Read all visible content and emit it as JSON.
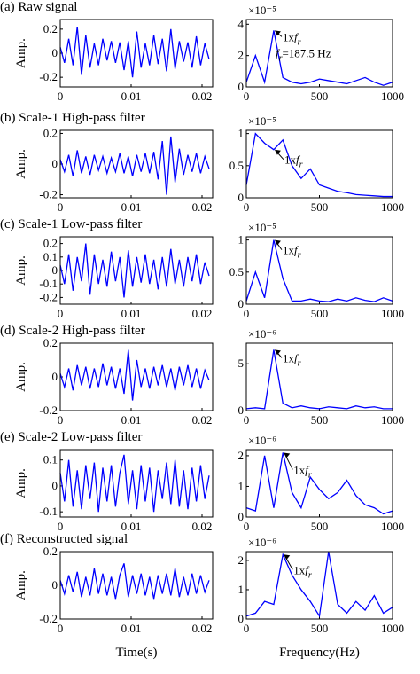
{
  "chart_data": [
    {
      "type": "line",
      "title": "(a) Raw signal",
      "ylabel": "Amp.",
      "color": "#0000ff",
      "x": [
        0,
        0.0006,
        0.0012,
        0.0018,
        0.0024,
        0.003,
        0.0036,
        0.0042,
        0.0048,
        0.0054,
        0.006,
        0.0066,
        0.0072,
        0.0078,
        0.0084,
        0.009,
        0.0096,
        0.0102,
        0.0108,
        0.0114,
        0.012,
        0.0126,
        0.0132,
        0.0138,
        0.0144,
        0.015,
        0.0156,
        0.0162,
        0.0168,
        0.0174,
        0.018,
        0.0186,
        0.0192,
        0.0198,
        0.0204,
        0.021
      ],
      "values": [
        0.05,
        -0.08,
        0.12,
        -0.1,
        0.22,
        -0.18,
        0.15,
        -0.12,
        0.08,
        -0.1,
        0.12,
        -0.06,
        0.1,
        -0.08,
        0.09,
        -0.14,
        0.1,
        -0.2,
        0.18,
        -0.12,
        0.08,
        -0.1,
        0.15,
        -0.09,
        0.12,
        -0.15,
        0.2,
        -0.13,
        0.1,
        -0.07,
        0.09,
        -0.12,
        0.14,
        -0.1,
        0.08,
        -0.05
      ],
      "xlim": [
        0,
        0.0215
      ],
      "xticks": [
        0,
        0.01,
        0.02
      ],
      "ylim": [
        -0.28,
        0.28
      ],
      "yticks": [
        -0.2,
        0,
        0.2
      ]
    },
    {
      "type": "line",
      "y_scale_label": "×10⁻⁵",
      "color": "#0000ff",
      "x": [
        0,
        62.5,
        125,
        187.5,
        250,
        312.5,
        375,
        437.5,
        500,
        562.5,
        625,
        687.5,
        750,
        812.5,
        875,
        937.5,
        1000
      ],
      "values": [
        0.3,
        2,
        0.3,
        3.6,
        0.6,
        0.3,
        0.2,
        0.3,
        0.5,
        0.4,
        0.3,
        0.2,
        0.4,
        0.6,
        0.3,
        0.1,
        0.3
      ],
      "xlim": [
        0,
        1000
      ],
      "xticks": [
        0,
        500,
        1000
      ],
      "ylim": [
        0,
        4.3
      ],
      "yticks": [
        0,
        2,
        4
      ],
      "annotations": [
        [
          {
            "text": "1x"
          },
          {
            "text": "f",
            "style": "italic"
          },
          {
            "text": "r",
            "style": "sub"
          }
        ],
        [
          {
            "text": "f",
            "style": "italic"
          },
          {
            "text": "r",
            "style": "sub"
          },
          {
            "text": "=187.5 Hz"
          }
        ]
      ]
    },
    {
      "type": "line",
      "title": "(b) Scale-1 High-pass filter",
      "ylabel": "Amp.",
      "color": "#0000ff",
      "x": [
        0,
        0.0006,
        0.0012,
        0.0018,
        0.0024,
        0.003,
        0.0036,
        0.0042,
        0.0048,
        0.0054,
        0.006,
        0.0066,
        0.0072,
        0.0078,
        0.0084,
        0.009,
        0.0096,
        0.0102,
        0.0108,
        0.0114,
        0.012,
        0.0126,
        0.0132,
        0.0138,
        0.0144,
        0.015,
        0.0156,
        0.0162,
        0.0168,
        0.0174,
        0.018,
        0.0186,
        0.0192,
        0.0198,
        0.0204,
        0.021
      ],
      "values": [
        0.03,
        -0.05,
        0.06,
        -0.08,
        0.09,
        -0.06,
        0.05,
        -0.07,
        0.06,
        -0.04,
        0.05,
        -0.06,
        0.04,
        -0.05,
        0.07,
        -0.06,
        0.05,
        -0.08,
        0.06,
        -0.05,
        0.07,
        -0.06,
        0.08,
        -0.1,
        0.15,
        -0.2,
        0.18,
        -0.12,
        0.1,
        -0.07,
        0.06,
        -0.05,
        0.07,
        -0.06,
        0.05,
        -0.03
      ],
      "xlim": [
        0,
        0.0215
      ],
      "xticks": [
        0,
        0.01,
        0.02
      ],
      "ylim": [
        -0.22,
        0.22
      ],
      "yticks": [
        -0.2,
        0,
        0.2
      ]
    },
    {
      "type": "line",
      "y_scale_label": "×10⁻⁵",
      "color": "#0000ff",
      "x": [
        0,
        62.5,
        125,
        187.5,
        250,
        312.5,
        375,
        437.5,
        500,
        562.5,
        625,
        687.5,
        750,
        812.5,
        875,
        937.5,
        1000
      ],
      "values": [
        0.2,
        1.0,
        0.85,
        0.75,
        0.9,
        0.5,
        0.3,
        0.45,
        0.2,
        0.15,
        0.1,
        0.08,
        0.05,
        0.04,
        0.03,
        0.02,
        0.02
      ],
      "xlim": [
        0,
        1000
      ],
      "xticks": [
        0,
        500,
        1000
      ],
      "ylim": [
        0,
        1.05
      ],
      "yticks": [
        0,
        0.5,
        1
      ],
      "annotations": [
        [
          {
            "text": "1x"
          },
          {
            "text": "f",
            "style": "italic"
          },
          {
            "text": "r",
            "style": "sub"
          }
        ]
      ]
    },
    {
      "type": "line",
      "title": "(c) Scale-1 Low-pass filter",
      "ylabel": "Amp.",
      "color": "#0000ff",
      "x": [
        0,
        0.0006,
        0.0012,
        0.0018,
        0.0024,
        0.003,
        0.0036,
        0.0042,
        0.0048,
        0.0054,
        0.006,
        0.0066,
        0.0072,
        0.0078,
        0.0084,
        0.009,
        0.0096,
        0.0102,
        0.0108,
        0.0114,
        0.012,
        0.0126,
        0.0132,
        0.0138,
        0.0144,
        0.015,
        0.0156,
        0.0162,
        0.0168,
        0.0174,
        0.018,
        0.0186,
        0.0192,
        0.0198,
        0.0204,
        0.021
      ],
      "values": [
        0.04,
        -0.1,
        0.12,
        -0.15,
        0.1,
        -0.08,
        0.2,
        -0.18,
        0.12,
        -0.1,
        0.08,
        -0.12,
        0.14,
        -0.08,
        0.1,
        -0.2,
        0.15,
        -0.12,
        0.1,
        -0.09,
        0.12,
        -0.1,
        0.08,
        -0.14,
        0.1,
        -0.12,
        0.16,
        -0.1,
        0.08,
        -0.12,
        0.1,
        -0.08,
        0.12,
        -0.1,
        0.06,
        -0.04
      ],
      "xlim": [
        0,
        0.0215
      ],
      "xticks": [
        0,
        0.01,
        0.02
      ],
      "ylim": [
        -0.25,
        0.25
      ],
      "yticks": [
        -0.2,
        -0.1,
        0,
        0.1,
        0.2
      ]
    },
    {
      "type": "line",
      "y_scale_label": "×10⁻⁵",
      "color": "#0000ff",
      "x": [
        0,
        62.5,
        125,
        187.5,
        250,
        312.5,
        375,
        437.5,
        500,
        562.5,
        625,
        687.5,
        750,
        812.5,
        875,
        937.5,
        1000
      ],
      "values": [
        0.05,
        0.5,
        0.1,
        1.0,
        0.4,
        0.05,
        0.05,
        0.08,
        0.05,
        0.04,
        0.08,
        0.05,
        0.1,
        0.06,
        0.04,
        0.1,
        0.05
      ],
      "xlim": [
        0,
        1000
      ],
      "xticks": [
        0,
        500,
        1000
      ],
      "ylim": [
        0,
        1.05
      ],
      "yticks": [
        0,
        0.5,
        1
      ],
      "annotations": [
        [
          {
            "text": "1x"
          },
          {
            "text": "f",
            "style": "italic"
          },
          {
            "text": "r",
            "style": "sub"
          }
        ]
      ]
    },
    {
      "type": "line",
      "title": "(d) Scale-2 High-pass filter",
      "ylabel": "Amp.",
      "color": "#0000ff",
      "x": [
        0,
        0.0006,
        0.0012,
        0.0018,
        0.0024,
        0.003,
        0.0036,
        0.0042,
        0.0048,
        0.0054,
        0.006,
        0.0066,
        0.0072,
        0.0078,
        0.0084,
        0.009,
        0.0096,
        0.0102,
        0.0108,
        0.0114,
        0.012,
        0.0126,
        0.0132,
        0.0138,
        0.0144,
        0.015,
        0.0156,
        0.0162,
        0.0168,
        0.0174,
        0.018,
        0.0186,
        0.0192,
        0.0198,
        0.0204,
        0.021
      ],
      "values": [
        0.02,
        -0.06,
        0.05,
        -0.08,
        0.07,
        -0.05,
        0.06,
        -0.07,
        0.05,
        -0.06,
        0.08,
        -0.05,
        0.06,
        -0.07,
        0.05,
        -0.1,
        0.16,
        -0.14,
        0.1,
        -0.06,
        0.05,
        -0.07,
        0.06,
        -0.05,
        0.07,
        -0.06,
        0.05,
        -0.08,
        0.06,
        -0.05,
        0.07,
        -0.06,
        0.05,
        -0.07,
        0.04,
        -0.02
      ],
      "xlim": [
        0,
        0.0215
      ],
      "xticks": [
        0,
        0.01,
        0.02
      ],
      "ylim": [
        -0.2,
        0.2
      ],
      "yticks": [
        -0.2,
        0,
        0.2
      ]
    },
    {
      "type": "line",
      "y_scale_label": "×10⁻⁶",
      "color": "#0000ff",
      "x": [
        0,
        62.5,
        125,
        187.5,
        250,
        312.5,
        375,
        437.5,
        500,
        562.5,
        625,
        687.5,
        750,
        812.5,
        875,
        937.5,
        1000
      ],
      "values": [
        0.2,
        0.3,
        0.2,
        6.5,
        0.8,
        0.3,
        0.5,
        0.3,
        0.2,
        0.4,
        0.3,
        0.2,
        0.5,
        0.3,
        0.4,
        0.2,
        0.2
      ],
      "xlim": [
        0,
        1000
      ],
      "xticks": [
        0,
        500,
        1000
      ],
      "ylim": [
        0,
        7.2
      ],
      "yticks": [
        0,
        5
      ],
      "annotations": [
        [
          {
            "text": "1x"
          },
          {
            "text": "f",
            "style": "italic"
          },
          {
            "text": "r",
            "style": "sub"
          }
        ]
      ]
    },
    {
      "type": "line",
      "title": "(e) Scale-2 Low-pass filter",
      "ylabel": "Amp.",
      "color": "#0000ff",
      "x": [
        0,
        0.0006,
        0.0012,
        0.0018,
        0.0024,
        0.003,
        0.0036,
        0.0042,
        0.0048,
        0.0054,
        0.006,
        0.0066,
        0.0072,
        0.0078,
        0.0084,
        0.009,
        0.0096,
        0.0102,
        0.0108,
        0.0114,
        0.012,
        0.0126,
        0.0132,
        0.0138,
        0.0144,
        0.015,
        0.0156,
        0.0162,
        0.0168,
        0.0174,
        0.018,
        0.0186,
        0.0192,
        0.0198,
        0.0204,
        0.021
      ],
      "values": [
        0.05,
        -0.06,
        0.1,
        -0.08,
        0.06,
        -0.09,
        0.08,
        -0.05,
        0.09,
        -0.1,
        0.07,
        -0.06,
        0.08,
        -0.08,
        0.05,
        0.12,
        -0.07,
        0.06,
        -0.09,
        0.08,
        -0.06,
        0.07,
        -0.1,
        0.06,
        -0.05,
        0.09,
        -0.07,
        0.1,
        -0.08,
        0.06,
        -0.09,
        0.07,
        -0.06,
        0.08,
        -0.05,
        0.04
      ],
      "xlim": [
        0,
        0.0215
      ],
      "xticks": [
        0,
        0.01,
        0.02
      ],
      "ylim": [
        -0.12,
        0.14
      ],
      "yticks": [
        -0.1,
        0,
        0.1
      ]
    },
    {
      "type": "line",
      "y_scale_label": "×10⁻⁶",
      "color": "#0000ff",
      "x": [
        0,
        62.5,
        125,
        187.5,
        250,
        312.5,
        375,
        437.5,
        500,
        562.5,
        625,
        687.5,
        750,
        812.5,
        875,
        937.5,
        1000
      ],
      "values": [
        0.3,
        0.2,
        2.0,
        0.3,
        2.1,
        0.8,
        0.3,
        1.3,
        0.9,
        0.6,
        0.8,
        1.2,
        0.7,
        0.4,
        0.3,
        0.1,
        0.2
      ],
      "xlim": [
        0,
        1000
      ],
      "xticks": [
        0,
        500,
        1000
      ],
      "ylim": [
        0,
        2.2
      ],
      "yticks": [
        0,
        1,
        2
      ],
      "annotations": [
        [
          {
            "text": "1x"
          },
          {
            "text": "f",
            "style": "italic"
          },
          {
            "text": "r",
            "style": "sub"
          }
        ]
      ]
    },
    {
      "type": "line",
      "title": "(f) Reconstructed signal",
      "ylabel": "Amp.",
      "xlabel": "Time(s)",
      "color": "#0000ff",
      "x": [
        0,
        0.0006,
        0.0012,
        0.0018,
        0.0024,
        0.003,
        0.0036,
        0.0042,
        0.0048,
        0.0054,
        0.006,
        0.0066,
        0.0072,
        0.0078,
        0.0084,
        0.009,
        0.0096,
        0.0102,
        0.0108,
        0.0114,
        0.012,
        0.0126,
        0.0132,
        0.0138,
        0.0144,
        0.015,
        0.0156,
        0.0162,
        0.0168,
        0.0174,
        0.018,
        0.0186,
        0.0192,
        0.0198,
        0.0204,
        0.021
      ],
      "values": [
        0.03,
        -0.05,
        0.06,
        -0.04,
        0.08,
        -0.07,
        0.05,
        -0.06,
        0.1,
        -0.05,
        0.07,
        -0.06,
        0.05,
        -0.08,
        0.06,
        0.13,
        -0.07,
        0.06,
        -0.05,
        0.07,
        -0.06,
        0.05,
        -0.08,
        0.06,
        -0.05,
        0.07,
        -0.06,
        0.1,
        -0.07,
        0.05,
        -0.06,
        0.07,
        -0.05,
        0.06,
        -0.04,
        0.03
      ],
      "xlim": [
        0,
        0.0215
      ],
      "xticks": [
        0,
        0.01,
        0.02
      ],
      "ylim": [
        -0.2,
        0.2
      ],
      "yticks": [
        -0.2,
        0,
        0.2
      ]
    },
    {
      "type": "line",
      "y_scale_label": "×10⁻⁶",
      "xlabel": "Frequency(Hz)",
      "color": "#0000ff",
      "x": [
        0,
        62.5,
        125,
        187.5,
        250,
        312.5,
        375,
        437.5,
        500,
        562.5,
        625,
        687.5,
        750,
        812.5,
        875,
        937.5,
        1000
      ],
      "values": [
        0.1,
        0.2,
        0.6,
        0.5,
        2.2,
        1.5,
        1.0,
        0.6,
        0.1,
        2.3,
        0.5,
        0.2,
        0.6,
        0.3,
        0.8,
        0.2,
        0.4
      ],
      "xlim": [
        0,
        1000
      ],
      "xticks": [
        0,
        500,
        1000
      ],
      "ylim": [
        0,
        2.3
      ],
      "yticks": [
        0,
        1,
        2
      ],
      "annotations": [
        [
          {
            "text": "1x"
          },
          {
            "text": "f",
            "style": "italic"
          },
          {
            "text": "r",
            "style": "sub"
          }
        ]
      ]
    }
  ]
}
